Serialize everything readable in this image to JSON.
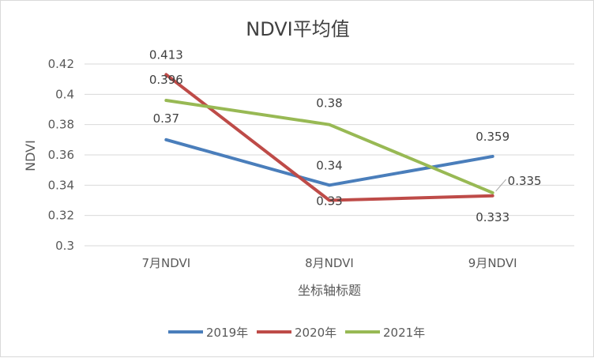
{
  "chart_data": {
    "type": "line",
    "title": "NDVI平均值",
    "xlabel": "坐标轴标题",
    "ylabel": "NDVI",
    "categories": [
      "7月NDVI",
      "8月NDVI",
      "9月NDVI"
    ],
    "ylim": [
      0.3,
      0.42
    ],
    "yticks": [
      0.3,
      0.32,
      0.34,
      0.36,
      0.38,
      0.4,
      0.42
    ],
    "ytick_labels": [
      "0.3",
      "0.32",
      "0.34",
      "0.36",
      "0.38",
      "0.4",
      "0.42"
    ],
    "grid": true,
    "legend_position": "bottom",
    "series": [
      {
        "name": "2019年",
        "color": "#4a7ebb",
        "values": [
          0.37,
          0.34,
          0.359
        ],
        "labels": [
          "0.37",
          "0.34",
          "0.359"
        ]
      },
      {
        "name": "2020年",
        "color": "#be4b48",
        "values": [
          0.413,
          0.33,
          0.333
        ],
        "labels": [
          "0.413",
          "0.33",
          "0.333"
        ]
      },
      {
        "name": "2021年",
        "color": "#98b954",
        "values": [
          0.396,
          0.38,
          0.335
        ],
        "labels": [
          "0.396",
          "0.38",
          "0.335"
        ]
      }
    ]
  }
}
